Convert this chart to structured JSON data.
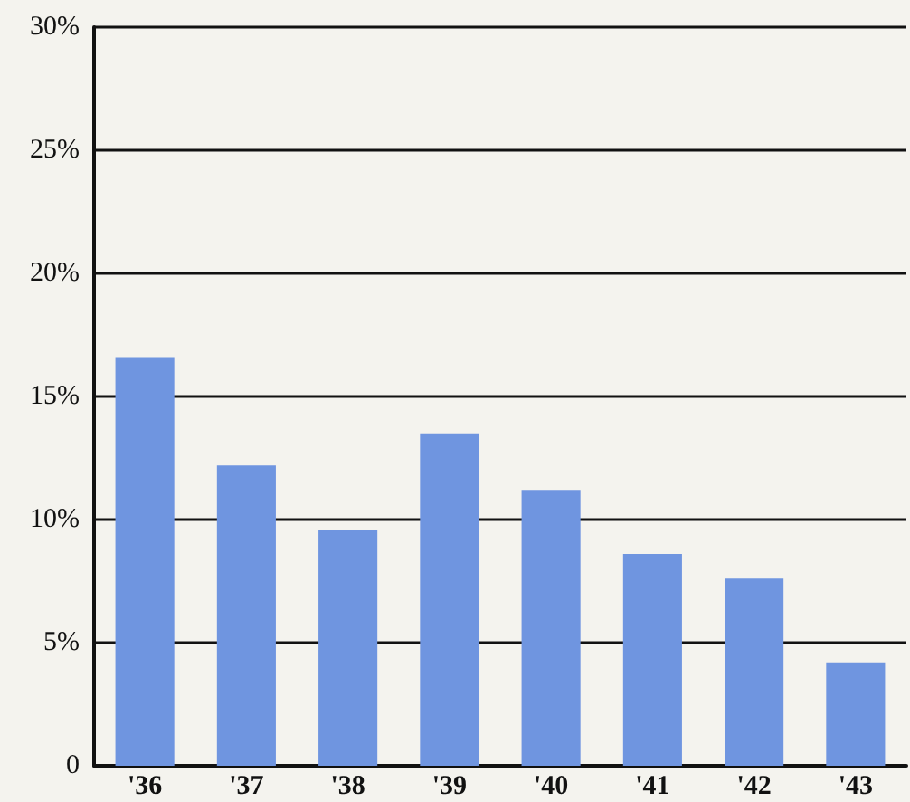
{
  "chart_data": {
    "type": "bar",
    "categories": [
      "'36",
      "'37",
      "'38",
      "'39",
      "'40",
      "'41",
      "'42",
      "'43"
    ],
    "values": [
      16.6,
      12.2,
      9.6,
      13.5,
      11.2,
      8.6,
      7.6,
      4.2
    ],
    "color": "#6f95e0",
    "ylim": [
      0,
      30
    ],
    "yticks": [
      {
        "value": 0,
        "label": "0"
      },
      {
        "value": 5,
        "label": "5%"
      },
      {
        "value": 10,
        "label": "10%"
      },
      {
        "value": 15,
        "label": "15%"
      },
      {
        "value": 20,
        "label": "20%"
      },
      {
        "value": 25,
        "label": "25%"
      },
      {
        "value": 30,
        "label": "30%"
      }
    ],
    "grid": "y"
  }
}
